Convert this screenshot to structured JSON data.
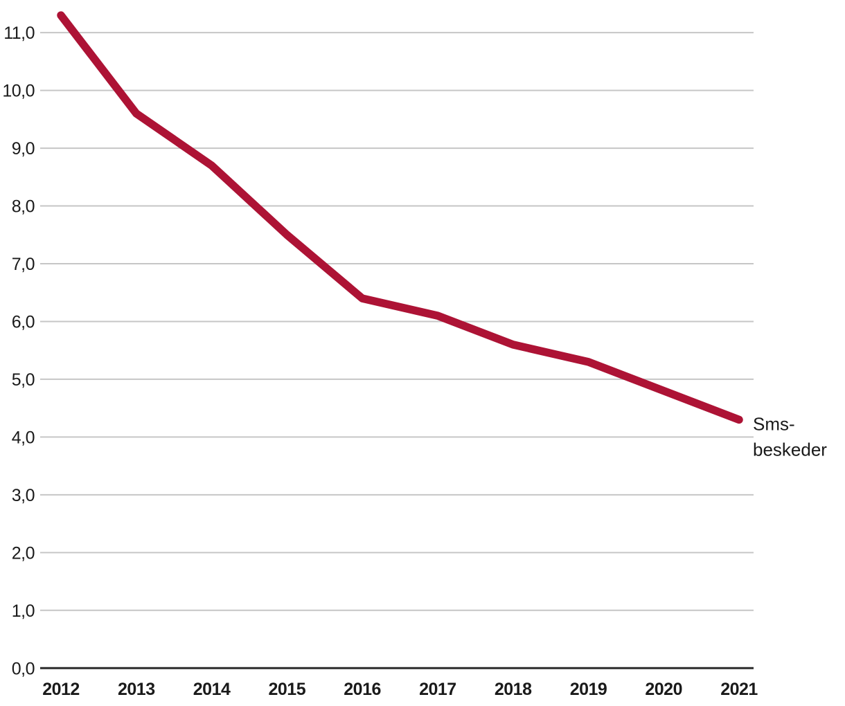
{
  "chart_data": {
    "type": "line",
    "title": "",
    "xlabel": "",
    "ylabel": "",
    "categories": [
      "2012",
      "2013",
      "2014",
      "2015",
      "2016",
      "2017",
      "2018",
      "2019",
      "2020",
      "2021"
    ],
    "series": [
      {
        "name": "Sms-beskeder",
        "label_lines": [
          "Sms-",
          "beskeder"
        ],
        "values": [
          11.3,
          9.6,
          8.7,
          7.5,
          6.4,
          6.1,
          5.6,
          5.3,
          4.8,
          4.3
        ],
        "color": "#ad1335"
      }
    ],
    "ylim": [
      0,
      11.5
    ],
    "ytick_values": [
      0,
      1,
      2,
      3,
      4,
      5,
      6,
      7,
      8,
      9,
      10,
      11
    ],
    "ytick_labels": [
      "0,0",
      "1,0",
      "2,0",
      "3,0",
      "4,0",
      "5,0",
      "6,0",
      "7,0",
      "8,0",
      "9,0",
      "10,0",
      "11,0"
    ],
    "grid": "horizontal",
    "legend_position": "line-end",
    "decimal_separator": ","
  },
  "colors": {
    "line": "#ad1335",
    "gridline": "#c6c6c6",
    "axis": "#2b2b2b",
    "tick_text": "#1a1a1a",
    "background": "#ffffff"
  }
}
